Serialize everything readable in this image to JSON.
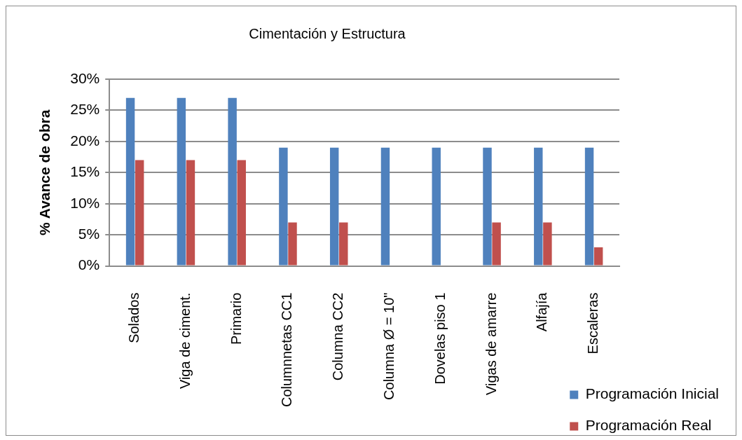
{
  "chart_data": {
    "type": "bar",
    "title": "Cimentación y Estructura",
    "ylabel": "% Avance de obra",
    "categories": [
      "Solados",
      "Viga de ciment.",
      "Primario",
      "Columnnetas CC1",
      "Columna CC2",
      "Columna Ø = 10\"",
      "Dovelas piso 1",
      "Vigas de amarre",
      "Alfajía",
      "Escaleras"
    ],
    "series": [
      {
        "name": "Programación Inicial",
        "color": "#4f81bd",
        "values": [
          27,
          27,
          27,
          19,
          19,
          19,
          19,
          19,
          19,
          19
        ]
      },
      {
        "name": "Programación Real",
        "color": "#c0504d",
        "values": [
          17,
          17,
          17,
          7,
          7,
          0,
          0,
          7,
          7,
          3
        ]
      }
    ],
    "ylim": [
      0,
      30
    ],
    "yticks": [
      {
        "value": 0,
        "label": "0%"
      },
      {
        "value": 5,
        "label": "5%"
      },
      {
        "value": 10,
        "label": "10%"
      },
      {
        "value": 15,
        "label": "15%"
      },
      {
        "value": 20,
        "label": "20%"
      },
      {
        "value": 25,
        "label": "25%"
      },
      {
        "value": 30,
        "label": "30%"
      }
    ],
    "grid": "y",
    "legend": "bottom right"
  }
}
